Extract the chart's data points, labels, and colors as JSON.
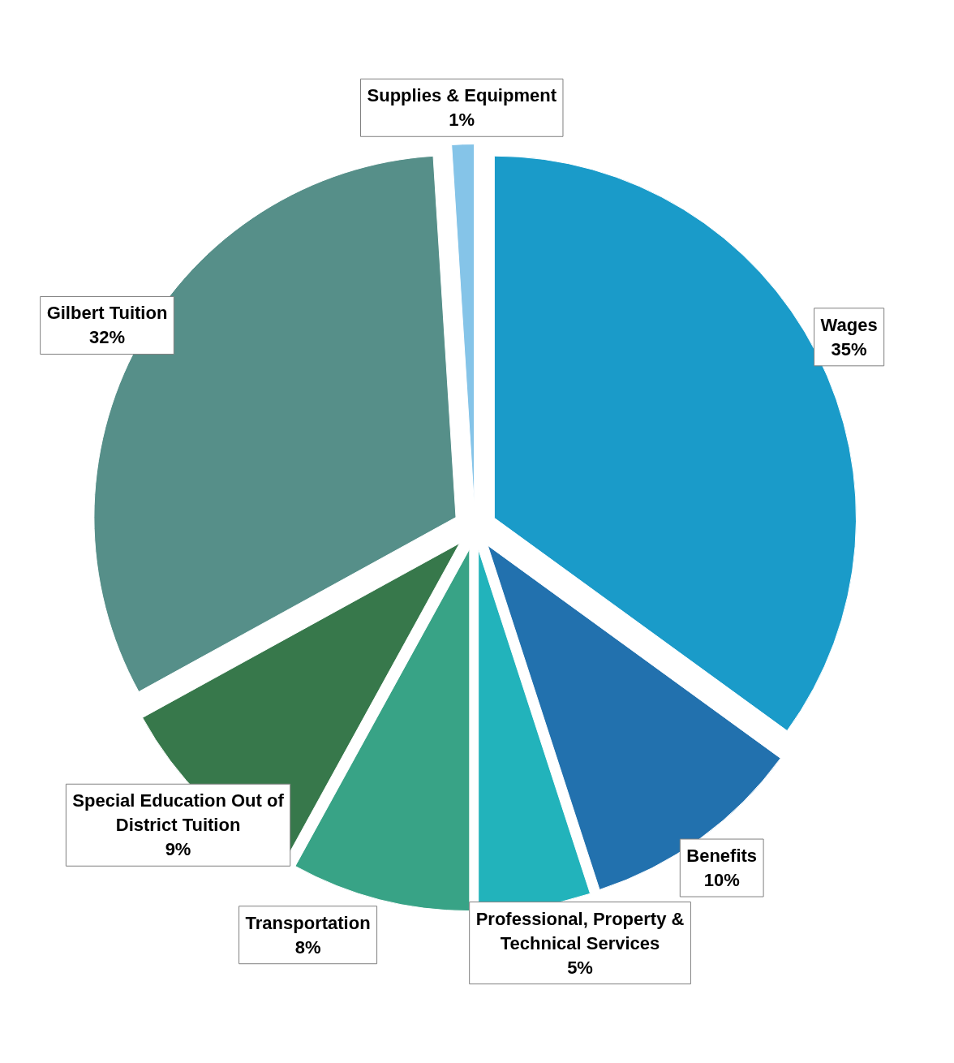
{
  "chart_data": {
    "type": "pie",
    "categories": [
      "Wages",
      "Benefits",
      "Professional, Property & Technical Services",
      "Transportation",
      "Special Education Out of District Tuition",
      "Gilbert Tuition",
      "Supplies & Equipment"
    ],
    "values": [
      35,
      10,
      5,
      8,
      9,
      32,
      1
    ],
    "colors": [
      "#1a9bc9",
      "#2271ae",
      "#22b3bb",
      "#38a386",
      "#37784b",
      "#568f89",
      "#85c4e8"
    ],
    "value_labels": [
      "35%",
      "10%",
      "5%",
      "8%",
      "9%",
      "32%",
      "1%"
    ]
  }
}
